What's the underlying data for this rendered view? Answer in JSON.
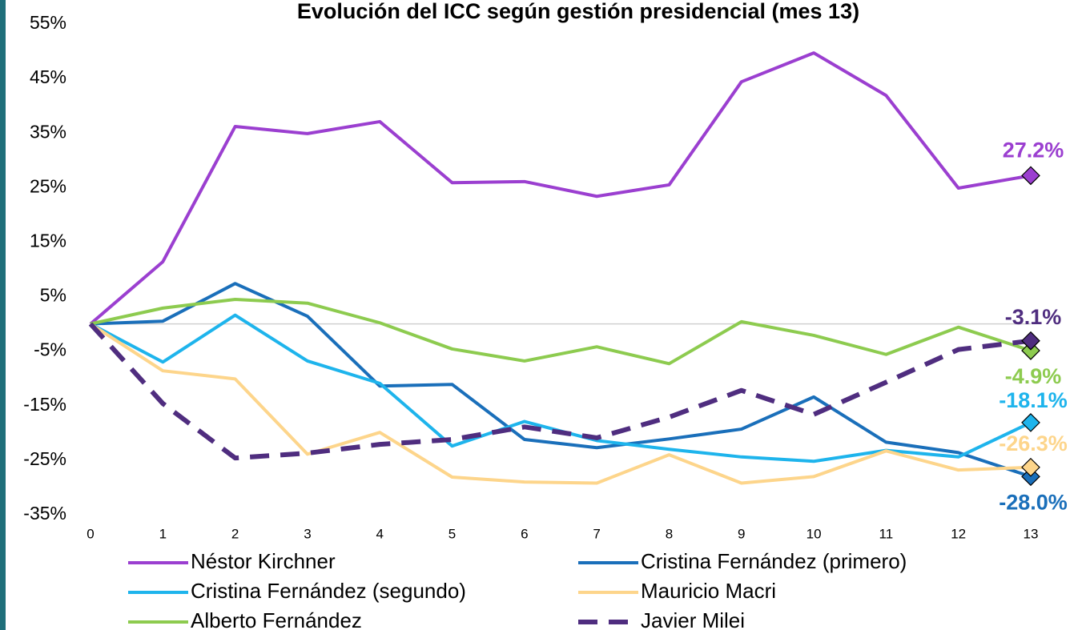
{
  "chart_data": {
    "type": "line",
    "title": "Evolución del ICC según gestión presidencial (mes 13)",
    "x": [
      0,
      1,
      2,
      3,
      4,
      5,
      6,
      7,
      8,
      9,
      10,
      11,
      12,
      13
    ],
    "xlim": [
      0,
      13
    ],
    "xticks": [
      0,
      1,
      2,
      3,
      4,
      5,
      6,
      7,
      8,
      9,
      10,
      11,
      12,
      13
    ],
    "ylim": [
      -35,
      55
    ],
    "yticks": [
      {
        "value": 55,
        "label": "55%"
      },
      {
        "value": 45,
        "label": "45%"
      },
      {
        "value": 35,
        "label": "35%"
      },
      {
        "value": 25,
        "label": "25%"
      },
      {
        "value": 15,
        "label": "15%"
      },
      {
        "value": 5,
        "label": "5%"
      },
      {
        "value": -5,
        "label": "-5%"
      },
      {
        "value": -15,
        "label": "-15%"
      },
      {
        "value": -25,
        "label": "-25%"
      },
      {
        "value": -35,
        "label": "-35%"
      }
    ],
    "grid": false,
    "series": [
      {
        "name": "Néstor Kirchner",
        "color": "#9b3fd0",
        "dashed": false,
        "values": [
          0,
          11.4,
          36.2,
          34.9,
          37.1,
          25.9,
          26.1,
          23.4,
          25.5,
          44.4,
          49.7,
          41.9,
          24.9,
          27.2
        ],
        "value_labels": [
          null,
          null,
          null,
          null,
          null,
          null,
          null,
          null,
          null,
          null,
          null,
          null,
          null,
          "27.2%"
        ]
      },
      {
        "name": "Cristina Fernández (primero)",
        "color": "#1a6fba",
        "dashed": false,
        "values": [
          0,
          0.5,
          7.4,
          1.4,
          -11.4,
          -11.1,
          -21.2,
          -22.7,
          -21.1,
          -19.3,
          -13.4,
          -21.7,
          -23.6,
          -28.0
        ],
        "value_labels": [
          null,
          null,
          null,
          null,
          null,
          null,
          null,
          null,
          null,
          null,
          null,
          null,
          null,
          "-28.0%"
        ]
      },
      {
        "name": "Cristina Fernández (segundo)",
        "color": "#1eb4ec",
        "dashed": false,
        "values": [
          0,
          -7.0,
          1.6,
          -6.8,
          -10.9,
          -22.4,
          -17.9,
          -21.4,
          -23.0,
          -24.4,
          -25.2,
          -23.2,
          -24.4,
          -18.1
        ],
        "value_labels": [
          null,
          null,
          null,
          null,
          null,
          null,
          null,
          null,
          null,
          null,
          null,
          null,
          null,
          "-18.1%"
        ]
      },
      {
        "name": "Mauricio Macri",
        "color": "#fdd58b",
        "dashed": false,
        "values": [
          0,
          -8.6,
          -10.1,
          -23.9,
          -19.9,
          -28.1,
          -29.0,
          -29.2,
          -24.0,
          -29.2,
          -28.0,
          -23.3,
          -26.8,
          -26.3
        ],
        "value_labels": [
          null,
          null,
          null,
          null,
          null,
          null,
          null,
          null,
          null,
          null,
          null,
          null,
          null,
          "-26.3%"
        ]
      },
      {
        "name": "Alberto Fernández",
        "color": "#8dcb4f",
        "dashed": false,
        "values": [
          0,
          2.9,
          4.5,
          3.8,
          0.2,
          -4.6,
          -6.8,
          -4.2,
          -7.3,
          0.4,
          -2.1,
          -5.6,
          -0.6,
          -4.9
        ],
        "value_labels": [
          null,
          null,
          null,
          null,
          null,
          null,
          null,
          null,
          null,
          null,
          null,
          null,
          null,
          "-4.9%"
        ]
      },
      {
        "name": "Javier Milei",
        "color": "#4f2d7f",
        "dashed": true,
        "values": [
          0,
          -14.6,
          -24.6,
          -23.7,
          -22.1,
          -21.2,
          -18.9,
          -20.9,
          -17.1,
          -12.2,
          -16.6,
          -10.7,
          -4.7,
          -3.1
        ],
        "value_labels": [
          null,
          null,
          null,
          null,
          null,
          null,
          null,
          null,
          null,
          null,
          null,
          null,
          null,
          "-3.1%"
        ]
      }
    ]
  }
}
